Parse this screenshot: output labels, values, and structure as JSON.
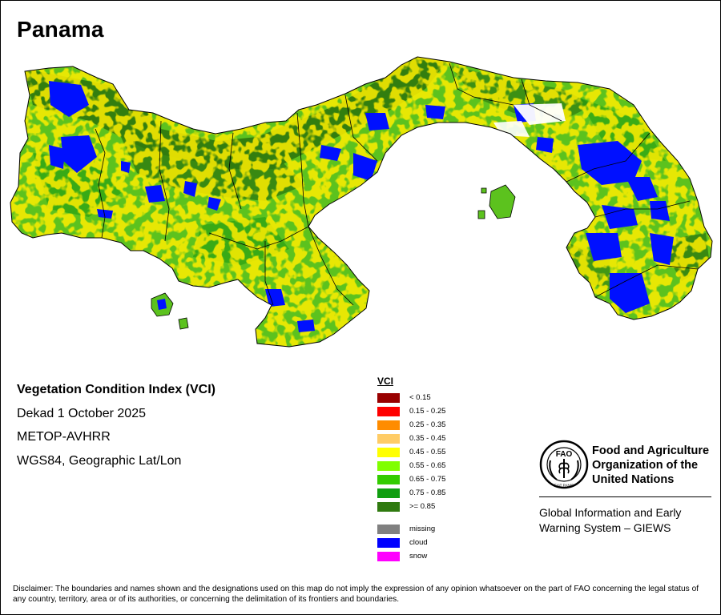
{
  "map": {
    "title": "Panama",
    "colors": {
      "land_base": "#5cc21e",
      "forest": "#2f7a0f",
      "dark_green": "#1f9a10",
      "cloud": "#0010ff",
      "missing": "#808080",
      "water": "#ffffff",
      "boundary": "#000000"
    }
  },
  "info": {
    "line1": "Vegetation Condition Index (VCI)",
    "line2": "Dekad 1 October 2025",
    "line3": "METOP-AVHRR",
    "line4": "WGS84, Geographic Lat/Lon"
  },
  "legend": {
    "title": "VCI",
    "classes": [
      {
        "label": "< 0.15",
        "color": "#990000"
      },
      {
        "label": "0.15 - 0.25",
        "color": "#ff0000"
      },
      {
        "label": "0.25 - 0.35",
        "color": "#ff8c00"
      },
      {
        "label": "0.35 - 0.45",
        "color": "#ffcc66"
      },
      {
        "label": "0.45 - 0.55",
        "color": "#ffff00"
      },
      {
        "label": "0.55 - 0.65",
        "color": "#80ff00"
      },
      {
        "label": "0.65 - 0.75",
        "color": "#33cc00"
      },
      {
        "label": "0.75 - 0.85",
        "color": "#109e10"
      },
      {
        "label": ">= 0.85",
        "color": "#2f7a0f"
      }
    ],
    "special": [
      {
        "label": "missing",
        "color": "#808080"
      },
      {
        "label": "cloud",
        "color": "#0000ff"
      },
      {
        "label": "snow",
        "color": "#ff00ff"
      }
    ]
  },
  "org": {
    "logo_icon": "fao-emblem-icon",
    "logo_text": "FAO",
    "motto": "FIAT PANIS",
    "name": "Food and Agriculture\nOrganization of the\nUnited Nations",
    "system": "Global Information and Early\nWarning System – GIEWS"
  },
  "disclaimer": "Disclaimer: The boundaries and names shown and the designations used on this map do not imply the expression of any opinion whatsoever on the part of FAO concerning the legal status of any country, territory, area or of its authorities, or concerning the delimitation of its frontiers and boundaries."
}
